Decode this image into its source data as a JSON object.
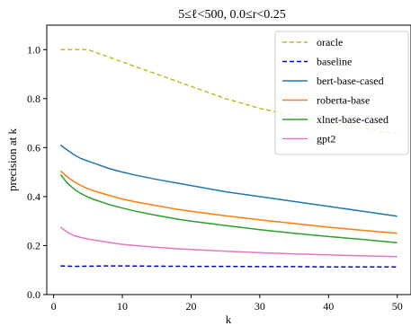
{
  "chart_data": {
    "type": "line",
    "title": "5≤ℓ<500, 0.0≤r<0.25",
    "xlabel": "k",
    "ylabel": "precision at k",
    "xlim": [
      -1,
      52
    ],
    "ylim": [
      0.0,
      1.1
    ],
    "xticks": [
      0,
      10,
      20,
      30,
      40,
      50
    ],
    "yticks": [
      0.0,
      0.2,
      0.4,
      0.6,
      0.8,
      1.0
    ],
    "xtick_labels": [
      "0",
      "10",
      "20",
      "30",
      "40",
      "50"
    ],
    "ytick_labels": [
      "0.0",
      "0.2",
      "0.4",
      "0.6",
      "0.8",
      "1.0"
    ],
    "legend_position": "top-right",
    "grid": false,
    "series": [
      {
        "name": "oracle",
        "color": "#bcbd22",
        "dash": "dashed",
        "x": [
          1,
          2,
          3,
          4,
          5,
          6,
          8,
          10,
          12,
          15,
          18,
          20,
          25,
          30,
          35,
          40,
          45,
          50
        ],
        "y": [
          1.0,
          1.0,
          1.0,
          1.0,
          1.0,
          0.99,
          0.97,
          0.95,
          0.93,
          0.9,
          0.87,
          0.85,
          0.8,
          0.76,
          0.73,
          0.7,
          0.68,
          0.655
        ]
      },
      {
        "name": "baseline",
        "color": "#0000cc",
        "dash": "dashed",
        "x": [
          1,
          3,
          5,
          8,
          10,
          15,
          20,
          25,
          30,
          35,
          40,
          45,
          50
        ],
        "y": [
          0.117,
          0.115,
          0.116,
          0.117,
          0.117,
          0.116,
          0.115,
          0.115,
          0.114,
          0.114,
          0.113,
          0.113,
          0.113
        ]
      },
      {
        "name": "bert-base-cased",
        "color": "#1f77b4",
        "dash": "solid",
        "x": [
          1,
          2,
          3,
          4,
          5,
          6,
          8,
          10,
          12,
          15,
          18,
          20,
          25,
          30,
          35,
          40,
          45,
          50
        ],
        "y": [
          0.61,
          0.59,
          0.57,
          0.555,
          0.545,
          0.535,
          0.515,
          0.5,
          0.487,
          0.47,
          0.455,
          0.445,
          0.42,
          0.4,
          0.38,
          0.36,
          0.34,
          0.32
        ]
      },
      {
        "name": "roberta-base",
        "color": "#ff7f0e",
        "dash": "solid",
        "x": [
          1,
          2,
          3,
          4,
          5,
          6,
          8,
          10,
          12,
          15,
          18,
          20,
          25,
          30,
          35,
          40,
          45,
          50
        ],
        "y": [
          0.505,
          0.48,
          0.46,
          0.445,
          0.432,
          0.422,
          0.405,
          0.39,
          0.378,
          0.363,
          0.348,
          0.34,
          0.322,
          0.305,
          0.29,
          0.275,
          0.262,
          0.25
        ]
      },
      {
        "name": "xlnet-base-cased",
        "color": "#2ca02c",
        "dash": "solid",
        "x": [
          1,
          2,
          3,
          4,
          5,
          6,
          8,
          10,
          12,
          15,
          18,
          20,
          25,
          30,
          35,
          40,
          45,
          50
        ],
        "y": [
          0.49,
          0.455,
          0.43,
          0.412,
          0.398,
          0.387,
          0.368,
          0.353,
          0.34,
          0.323,
          0.308,
          0.3,
          0.282,
          0.265,
          0.25,
          0.237,
          0.225,
          0.212
        ]
      },
      {
        "name": "gpt2",
        "color": "#e377c2",
        "dash": "solid",
        "x": [
          1,
          2,
          3,
          4,
          5,
          6,
          8,
          10,
          12,
          15,
          18,
          20,
          25,
          30,
          35,
          40,
          45,
          50
        ],
        "y": [
          0.275,
          0.255,
          0.24,
          0.233,
          0.227,
          0.222,
          0.213,
          0.205,
          0.2,
          0.193,
          0.187,
          0.184,
          0.177,
          0.171,
          0.166,
          0.162,
          0.158,
          0.155
        ]
      }
    ]
  }
}
